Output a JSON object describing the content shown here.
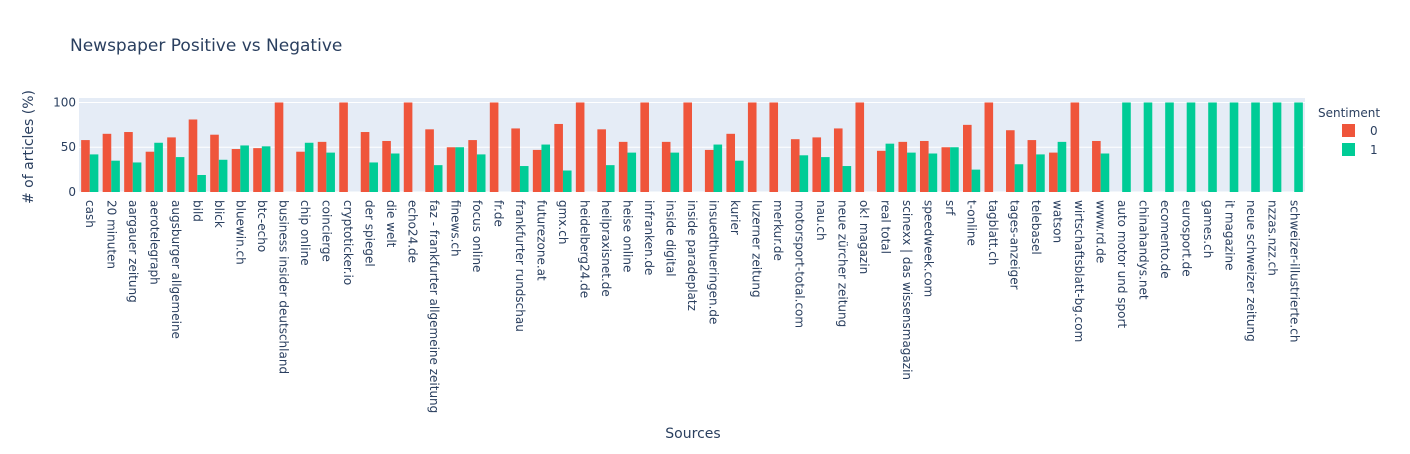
{
  "chart_data": {
    "type": "bar",
    "title": "Newspaper Positive vs Negative",
    "xlabel": "Sources",
    "ylabel": "# of articles (%)",
    "ylim": [
      0,
      105
    ],
    "yticks": [
      0,
      50,
      100
    ],
    "grid": true,
    "legend": {
      "title": "Sentiment",
      "placement": "top-right"
    },
    "categories": [
      "cash",
      "20 minuten",
      "aargauer zeitung",
      "aerotelegraph",
      "augsburger allgemeine",
      "bild",
      "blick",
      "bluewin.ch",
      "btc-echo",
      "business insider deutschland",
      "chip online",
      "coincierge",
      "cryptoticker.io",
      "der spiegel",
      "die welt",
      "echo24.de",
      "faz - frankfurter allgemeine zeitung",
      "finews.ch",
      "focus online",
      "fr.de",
      "frankfurter rundschau",
      "futurezone.at",
      "gmx.ch",
      "heidelberg24.de",
      "heilpraxisnet.de",
      "heise online",
      "infranken.de",
      "inside digital",
      "inside paradeplatz",
      "insuedthueringen.de",
      "kurier",
      "luzerner zeitung",
      "merkur.de",
      "motorsport-total.com",
      "nau.ch",
      "neue zürcher zeitung",
      "ok! magazin",
      "real total",
      "scinexx | das wissensmagazin",
      "speedweek.com",
      "srf",
      "t-online",
      "tagblatt.ch",
      "tages-anzeiger",
      "telebasel",
      "watson",
      "wirtschaftsblatt-bg.com",
      "www.rd.de",
      "auto motor und sport",
      "chinahandys.net",
      "ecomento.de",
      "eurosport.de",
      "games.ch",
      "it magazine",
      "neue schweizer zeitung",
      "nzzas.nzz.ch",
      "schweizer-illustrierte.ch"
    ],
    "series": [
      {
        "name": "0",
        "color": "#EF553B",
        "values": [
          58,
          65,
          67,
          45,
          61,
          81,
          64,
          48,
          49,
          100,
          45,
          56,
          100,
          67,
          57,
          100,
          70,
          50,
          58,
          100,
          71,
          47,
          76,
          100,
          70,
          56,
          100,
          56,
          100,
          47,
          65,
          100,
          100,
          59,
          61,
          71,
          100,
          46,
          56,
          57,
          50,
          75,
          100,
          69,
          58,
          44,
          100,
          57,
          0,
          0,
          0,
          0,
          0,
          0,
          0,
          0,
          0
        ]
      },
      {
        "name": "1",
        "color": "#00CC96",
        "values": [
          42,
          35,
          33,
          55,
          39,
          19,
          36,
          52,
          51,
          0,
          55,
          44,
          0,
          33,
          43,
          0,
          30,
          50,
          42,
          0,
          29,
          53,
          24,
          0,
          30,
          44,
          0,
          44,
          0,
          53,
          35,
          0,
          0,
          41,
          39,
          29,
          0,
          54,
          44,
          43,
          50,
          25,
          0,
          31,
          42,
          56,
          0,
          43,
          100,
          100,
          100,
          100,
          100,
          100,
          100,
          100,
          100
        ]
      }
    ]
  }
}
